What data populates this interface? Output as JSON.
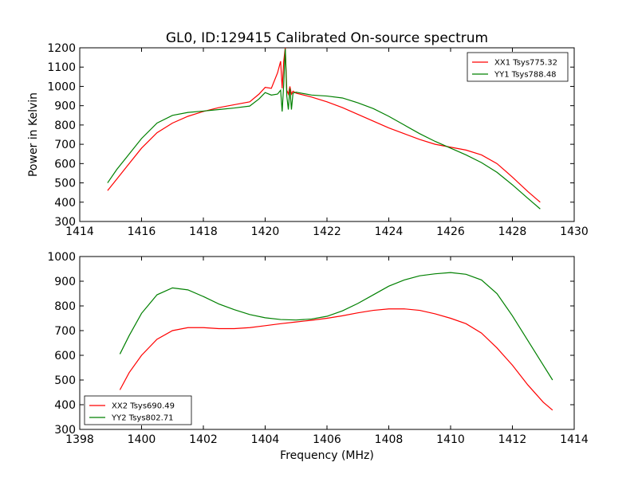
{
  "chart_data": [
    {
      "type": "line",
      "title": "GL0, ID:129415 Calibrated On-source spectrum",
      "xlabel": "",
      "ylabel": "Power in Kelvin",
      "xlim": [
        1414,
        1430
      ],
      "ylim": [
        300,
        1200
      ],
      "xticks": [
        1414,
        1416,
        1418,
        1420,
        1422,
        1424,
        1426,
        1428,
        1430
      ],
      "yticks": [
        300,
        400,
        500,
        600,
        700,
        800,
        900,
        1000,
        1100,
        1200
      ],
      "xtick_labels": [
        "1414",
        "1416",
        "1418",
        "1420",
        "1422",
        "1424",
        "1426",
        "1428",
        "1430"
      ],
      "ytick_labels": [
        "300",
        "400",
        "500",
        "600",
        "700",
        "800",
        "900",
        "1000",
        "1100",
        "1200"
      ],
      "legend_position": "top-right",
      "grid": false,
      "series": [
        {
          "name": "XX1 Tsys775.32",
          "color": "#ff0000",
          "x": [
            1414.9,
            1415.2,
            1415.5,
            1416.0,
            1416.5,
            1417.0,
            1417.5,
            1418.0,
            1418.5,
            1419.0,
            1419.5,
            1419.8,
            1420.0,
            1420.2,
            1420.4,
            1420.5,
            1420.55,
            1420.6,
            1420.65,
            1420.7,
            1420.75,
            1420.8,
            1420.85,
            1420.9,
            1421.0,
            1421.5,
            1422.0,
            1422.5,
            1423.0,
            1423.5,
            1424.0,
            1424.5,
            1425.0,
            1425.5,
            1426.0,
            1426.5,
            1427.0,
            1427.5,
            1428.0,
            1428.5,
            1428.9
          ],
          "y": [
            460,
            520,
            580,
            680,
            760,
            810,
            845,
            870,
            890,
            905,
            920,
            960,
            995,
            990,
            1070,
            1130,
            990,
            1130,
            1200,
            980,
            960,
            1000,
            960,
            975,
            965,
            945,
            920,
            890,
            855,
            820,
            785,
            755,
            725,
            700,
            685,
            670,
            645,
            600,
            530,
            455,
            400
          ]
        },
        {
          "name": "YY1 Tsys788.48",
          "color": "#008000",
          "x": [
            1414.9,
            1415.2,
            1415.5,
            1416.0,
            1416.5,
            1417.0,
            1417.5,
            1418.0,
            1418.5,
            1419.0,
            1419.5,
            1419.8,
            1420.0,
            1420.2,
            1420.4,
            1420.5,
            1420.55,
            1420.6,
            1420.65,
            1420.7,
            1420.75,
            1420.8,
            1420.85,
            1420.9,
            1421.0,
            1421.5,
            1422.0,
            1422.5,
            1423.0,
            1423.5,
            1424.0,
            1424.5,
            1425.0,
            1425.5,
            1426.0,
            1426.5,
            1427.0,
            1427.5,
            1428.0,
            1428.5,
            1428.9
          ],
          "y": [
            500,
            570,
            630,
            730,
            810,
            850,
            865,
            872,
            880,
            888,
            898,
            935,
            968,
            955,
            960,
            980,
            870,
            1010,
            1195,
            950,
            880,
            990,
            880,
            965,
            970,
            955,
            950,
            940,
            915,
            885,
            845,
            800,
            755,
            715,
            680,
            645,
            605,
            555,
            490,
            420,
            365
          ]
        }
      ]
    },
    {
      "type": "line",
      "title": "",
      "xlabel": "Frequency (MHz)",
      "ylabel": "",
      "xlim": [
        1398,
        1414
      ],
      "ylim": [
        300,
        1000
      ],
      "xticks": [
        1398,
        1400,
        1402,
        1404,
        1406,
        1408,
        1410,
        1412,
        1414
      ],
      "yticks": [
        300,
        400,
        500,
        600,
        700,
        800,
        900,
        1000
      ],
      "xtick_labels": [
        "1398",
        "1400",
        "1402",
        "1404",
        "1406",
        "1408",
        "1410",
        "1412",
        "1414"
      ],
      "ytick_labels": [
        "300",
        "400",
        "500",
        "600",
        "700",
        "800",
        "900",
        "1000"
      ],
      "legend_position": "bottom-left",
      "grid": false,
      "series": [
        {
          "name": "XX2 Tsys690.49",
          "color": "#ff0000",
          "x": [
            1399.3,
            1399.6,
            1400.0,
            1400.5,
            1401.0,
            1401.5,
            1402.0,
            1402.5,
            1403.0,
            1403.5,
            1404.0,
            1404.5,
            1405.0,
            1405.5,
            1406.0,
            1406.5,
            1407.0,
            1407.5,
            1408.0,
            1408.5,
            1409.0,
            1409.5,
            1410.0,
            1410.5,
            1411.0,
            1411.5,
            1412.0,
            1412.5,
            1413.0,
            1413.3
          ],
          "y": [
            460,
            530,
            600,
            665,
            700,
            712,
            712,
            708,
            708,
            712,
            720,
            728,
            735,
            742,
            750,
            760,
            772,
            782,
            788,
            788,
            782,
            768,
            750,
            728,
            690,
            630,
            560,
            480,
            410,
            378
          ]
        },
        {
          "name": "YY2 Tsys802.71",
          "color": "#008000",
          "x": [
            1399.3,
            1399.6,
            1400.0,
            1400.5,
            1401.0,
            1401.5,
            1402.0,
            1402.5,
            1403.0,
            1403.5,
            1404.0,
            1404.5,
            1405.0,
            1405.5,
            1406.0,
            1406.5,
            1407.0,
            1407.5,
            1408.0,
            1408.5,
            1409.0,
            1409.5,
            1410.0,
            1410.5,
            1411.0,
            1411.5,
            1412.0,
            1412.5,
            1413.0,
            1413.3
          ],
          "y": [
            605,
            680,
            770,
            845,
            873,
            865,
            838,
            808,
            785,
            765,
            752,
            745,
            743,
            747,
            758,
            780,
            810,
            845,
            880,
            905,
            922,
            930,
            935,
            928,
            905,
            850,
            760,
            660,
            560,
            500
          ]
        }
      ]
    }
  ]
}
